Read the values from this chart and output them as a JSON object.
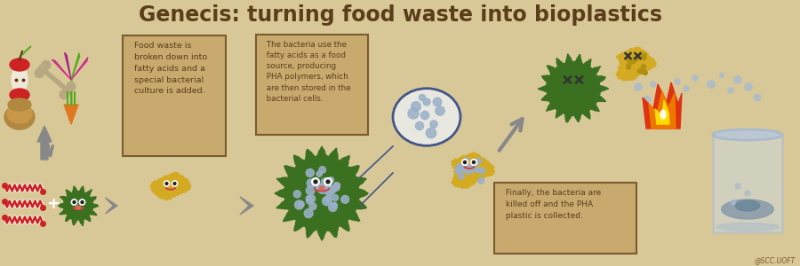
{
  "title": "Genecis: turning food waste into bioplastics",
  "title_color": "#5a3e1b",
  "title_fontsize": 17,
  "bg_color": "#d8c898",
  "box1_text": " Food waste is\n broken down into\n fatty acids and a\n special bacterial\n culture is added.",
  "box2_text": " The bacteria use the\n fatty acids as a food\n source, producing\n PHA polymers, which\n are then stored in the\n bacterial cells.",
  "box3_text": " Finally, the bacteria are\n killed off and the PHA\n plastic is collected.",
  "box_color": "#c8a96e",
  "box_edge_color": "#7a5c2e",
  "text_color": "#5a3e1b",
  "arrow_color": "#888888",
  "watermark": "@SCC.UOFT",
  "watermark_color": "#7a5c2e",
  "fatty_acid_color": "#cc2222",
  "bone_color": "#b8a882",
  "apple_color": "#cc2222",
  "carrot_color": "#e07820",
  "leaf_colors": [
    "#cc3388",
    "#55aa22",
    "#aa2288"
  ],
  "bacterium_green": "#3a7020",
  "bacterium_yellow": "#d4aa22",
  "pha_dot_color": "#9ab0c8",
  "magnifier_outline": "#445588",
  "magnifier_bg": "#e8e8e0",
  "fire_red": "#dd3311",
  "fire_orange": "#ee7700",
  "fire_yellow": "#ffdd00",
  "fire_white": "#ffffff",
  "beaker_edge": "#aabbcc",
  "beaker_fill": "#ccd8e0",
  "pha_plastic_color": "#8899aa",
  "bubble_color": "#aabbcc",
  "dead_x_color": "#333333"
}
